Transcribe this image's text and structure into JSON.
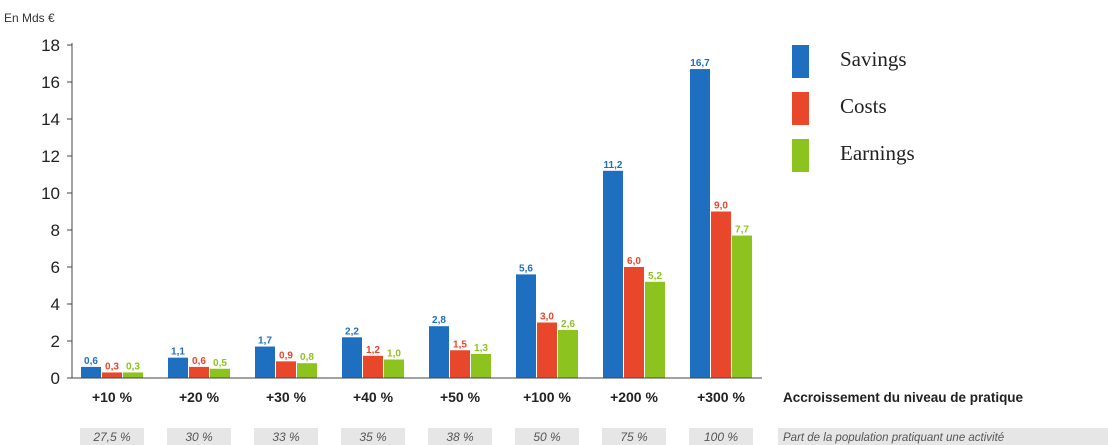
{
  "chart_data": {
    "type": "bar",
    "unit_label": "En Mds €",
    "categories": [
      "+10 %",
      "+20 %",
      "+30 %",
      "+40 %",
      "+50 %",
      "+100 %",
      "+200 %",
      "+300 %"
    ],
    "x_title": "Accroissement du niveau de pratique",
    "population_row_title": "Part de la population pratiquant une activité",
    "population_share": [
      "27,5 %",
      "30 %",
      "33 %",
      "35 %",
      "38 %",
      "50 %",
      "75 %",
      "100 %"
    ],
    "series": [
      {
        "name": "Savings",
        "color": "#1f6fc1",
        "values": [
          0.6,
          1.1,
          1.7,
          2.2,
          2.8,
          5.6,
          11.2,
          16.7
        ],
        "labels": [
          "0,6",
          "1,1",
          "1,7",
          "2,2",
          "2,8",
          "5,6",
          "11,2",
          "16,7"
        ]
      },
      {
        "name": "Costs",
        "color": "#e8472b",
        "values": [
          0.3,
          0.6,
          0.9,
          1.2,
          1.5,
          3.0,
          6.0,
          9.0
        ],
        "labels": [
          "0,3",
          "0,6",
          "0,9",
          "1,2",
          "1,5",
          "3,0",
          "6,0",
          "9,0"
        ]
      },
      {
        "name": "Earnings",
        "color": "#8cc31f",
        "values": [
          0.3,
          0.5,
          0.8,
          1.0,
          1.3,
          2.6,
          5.2,
          7.7
        ],
        "labels": [
          "0,3",
          "0,5",
          "0,8",
          "1,0",
          "1,3",
          "2,6",
          "5,2",
          "7,7"
        ]
      }
    ],
    "ylim": [
      0,
      18
    ],
    "yticks": [
      "0",
      "2",
      "4",
      "6",
      "8",
      "10",
      "12",
      "14",
      "16",
      "18"
    ],
    "grid": false,
    "legend_position": "top-right"
  }
}
